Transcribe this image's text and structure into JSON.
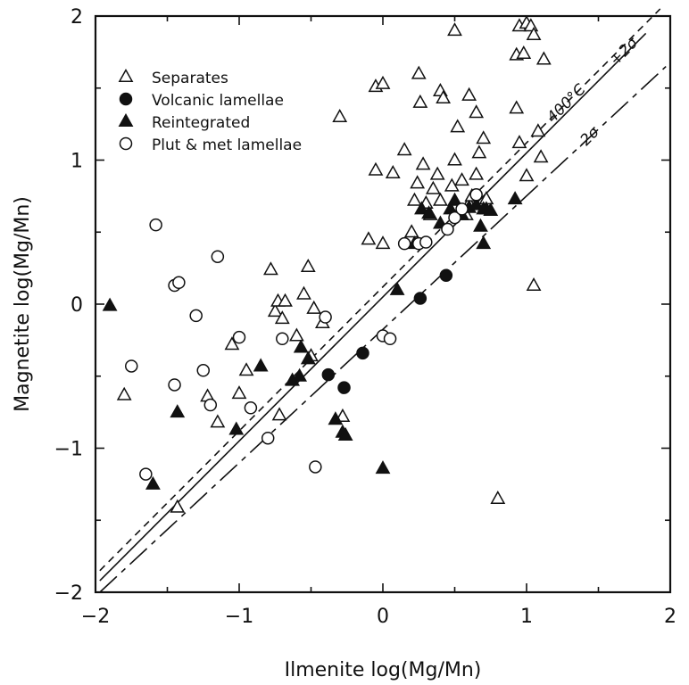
{
  "chart_data": {
    "type": "scatter",
    "xlabel": "Ilmenite log(Mg/Mn)",
    "ylabel": "Magnetite log(Mg/Mn)",
    "xlim": [
      -2,
      2
    ],
    "ylim": [
      -2,
      2
    ],
    "x_ticks": [
      -2,
      -1,
      0,
      1,
      2
    ],
    "y_ticks": [
      -2,
      -1,
      0,
      1,
      2
    ],
    "legend_position": "top-left",
    "series": [
      {
        "name": "Separates",
        "marker": "open-triangle",
        "points": [
          [
            -1.8,
            -0.63
          ],
          [
            -1.43,
            -1.41
          ],
          [
            -1.22,
            -0.64
          ],
          [
            -1.15,
            -0.82
          ],
          [
            -1.05,
            -0.28
          ],
          [
            -1.0,
            -0.62
          ],
          [
            -0.95,
            -0.46
          ],
          [
            -0.78,
            0.24
          ],
          [
            -0.75,
            -0.05
          ],
          [
            -0.73,
            0.02
          ],
          [
            -0.7,
            -0.1
          ],
          [
            -0.68,
            0.02
          ],
          [
            -0.72,
            -0.77
          ],
          [
            -0.6,
            -0.22
          ],
          [
            -0.55,
            0.07
          ],
          [
            -0.52,
            0.26
          ],
          [
            -0.5,
            -0.36
          ],
          [
            -0.48,
            -0.03
          ],
          [
            -0.42,
            -0.13
          ],
          [
            -0.3,
            1.3
          ],
          [
            -0.28,
            -0.78
          ],
          [
            -0.1,
            0.45
          ],
          [
            -0.05,
            0.93
          ],
          [
            -0.05,
            1.51
          ],
          [
            0.0,
            0.42
          ],
          [
            0.0,
            1.53
          ],
          [
            0.07,
            0.91
          ],
          [
            0.15,
            1.07
          ],
          [
            0.2,
            0.5
          ],
          [
            0.22,
            0.72
          ],
          [
            0.24,
            0.84
          ],
          [
            0.25,
            1.6
          ],
          [
            0.26,
            1.4
          ],
          [
            0.28,
            0.97
          ],
          [
            0.3,
            0.7
          ],
          [
            0.33,
            0.62
          ],
          [
            0.35,
            0.8
          ],
          [
            0.38,
            0.9
          ],
          [
            0.4,
            0.72
          ],
          [
            0.4,
            1.48
          ],
          [
            0.42,
            1.43
          ],
          [
            0.48,
            0.82
          ],
          [
            0.5,
            1.0
          ],
          [
            0.5,
            1.9
          ],
          [
            0.52,
            1.23
          ],
          [
            0.55,
            0.86
          ],
          [
            0.58,
            0.62
          ],
          [
            0.6,
            1.45
          ],
          [
            0.6,
            0.7
          ],
          [
            0.62,
            0.75
          ],
          [
            0.65,
            0.9
          ],
          [
            0.65,
            1.33
          ],
          [
            0.67,
            1.05
          ],
          [
            0.7,
            1.15
          ],
          [
            0.72,
            0.73
          ],
          [
            0.8,
            -1.35
          ],
          [
            0.93,
            1.73
          ],
          [
            0.93,
            1.36
          ],
          [
            0.95,
            1.12
          ],
          [
            0.95,
            1.93
          ],
          [
            0.98,
            1.74
          ],
          [
            1.0,
            0.89
          ],
          [
            1.0,
            1.95
          ],
          [
            1.03,
            1.93
          ],
          [
            1.05,
            1.87
          ],
          [
            1.05,
            0.13
          ],
          [
            1.08,
            1.2
          ],
          [
            1.1,
            1.02
          ],
          [
            1.12,
            1.7
          ]
        ]
      },
      {
        "name": "Volcanic lamellae",
        "marker": "filled-circle",
        "points": [
          [
            -0.38,
            -0.49
          ],
          [
            -0.27,
            -0.58
          ],
          [
            -0.14,
            -0.34
          ],
          [
            0.26,
            0.04
          ],
          [
            0.44,
            0.2
          ]
        ]
      },
      {
        "name": "Reintegrated",
        "marker": "filled-triangle",
        "points": [
          [
            -1.9,
            -0.01
          ],
          [
            -1.6,
            -1.25
          ],
          [
            -1.43,
            -0.75
          ],
          [
            -1.02,
            -0.87
          ],
          [
            -0.85,
            -0.43
          ],
          [
            -0.63,
            -0.53
          ],
          [
            -0.58,
            -0.5
          ],
          [
            -0.57,
            -0.3
          ],
          [
            -0.52,
            -0.38
          ],
          [
            -0.33,
            -0.8
          ],
          [
            -0.28,
            -0.89
          ],
          [
            -0.26,
            -0.91
          ],
          [
            0.0,
            -1.14
          ],
          [
            0.1,
            0.1
          ],
          [
            0.22,
            0.42
          ],
          [
            0.27,
            0.66
          ],
          [
            0.32,
            0.63
          ],
          [
            0.4,
            0.56
          ],
          [
            0.47,
            0.66
          ],
          [
            0.5,
            0.72
          ],
          [
            0.55,
            0.62
          ],
          [
            0.6,
            0.67
          ],
          [
            0.65,
            0.69
          ],
          [
            0.68,
            0.54
          ],
          [
            0.7,
            0.42
          ],
          [
            0.7,
            0.66
          ],
          [
            0.72,
            0.66
          ],
          [
            0.75,
            0.65
          ],
          [
            0.92,
            0.73
          ]
        ]
      },
      {
        "name": "Plut & met lamellae",
        "marker": "open-circle",
        "points": [
          [
            -1.75,
            -0.43
          ],
          [
            -1.65,
            -1.18
          ],
          [
            -1.58,
            0.55
          ],
          [
            -1.45,
            0.13
          ],
          [
            -1.42,
            0.15
          ],
          [
            -1.45,
            -0.56
          ],
          [
            -1.3,
            -0.08
          ],
          [
            -1.25,
            -0.46
          ],
          [
            -1.2,
            -0.7
          ],
          [
            -1.15,
            0.33
          ],
          [
            -1.0,
            -0.23
          ],
          [
            -0.92,
            -0.72
          ],
          [
            -0.8,
            -0.93
          ],
          [
            -0.7,
            -0.24
          ],
          [
            -0.47,
            -1.13
          ],
          [
            -0.4,
            -0.09
          ],
          [
            0.0,
            -0.22
          ],
          [
            0.05,
            -0.24
          ],
          [
            0.15,
            0.42
          ],
          [
            0.25,
            0.42
          ],
          [
            0.3,
            0.43
          ],
          [
            0.45,
            0.52
          ],
          [
            0.5,
            0.6
          ],
          [
            0.55,
            0.66
          ],
          [
            0.65,
            0.76
          ]
        ]
      }
    ],
    "lines": [
      {
        "label": "400°C",
        "style": "solid",
        "x": [
          -1.97,
          1.83
        ],
        "y": [
          -1.92,
          1.88
        ]
      },
      {
        "label": "+2σ",
        "style": "dashed",
        "x": [
          -1.97,
          1.93
        ],
        "y": [
          -1.85,
          2.05
        ]
      },
      {
        "label": "-2σ",
        "style": "dash-dot",
        "x": [
          -1.97,
          1.97
        ],
        "y": [
          -2.0,
          1.65
        ]
      }
    ],
    "line_labels": [
      "400°C",
      "+2σ",
      "-2σ"
    ]
  }
}
